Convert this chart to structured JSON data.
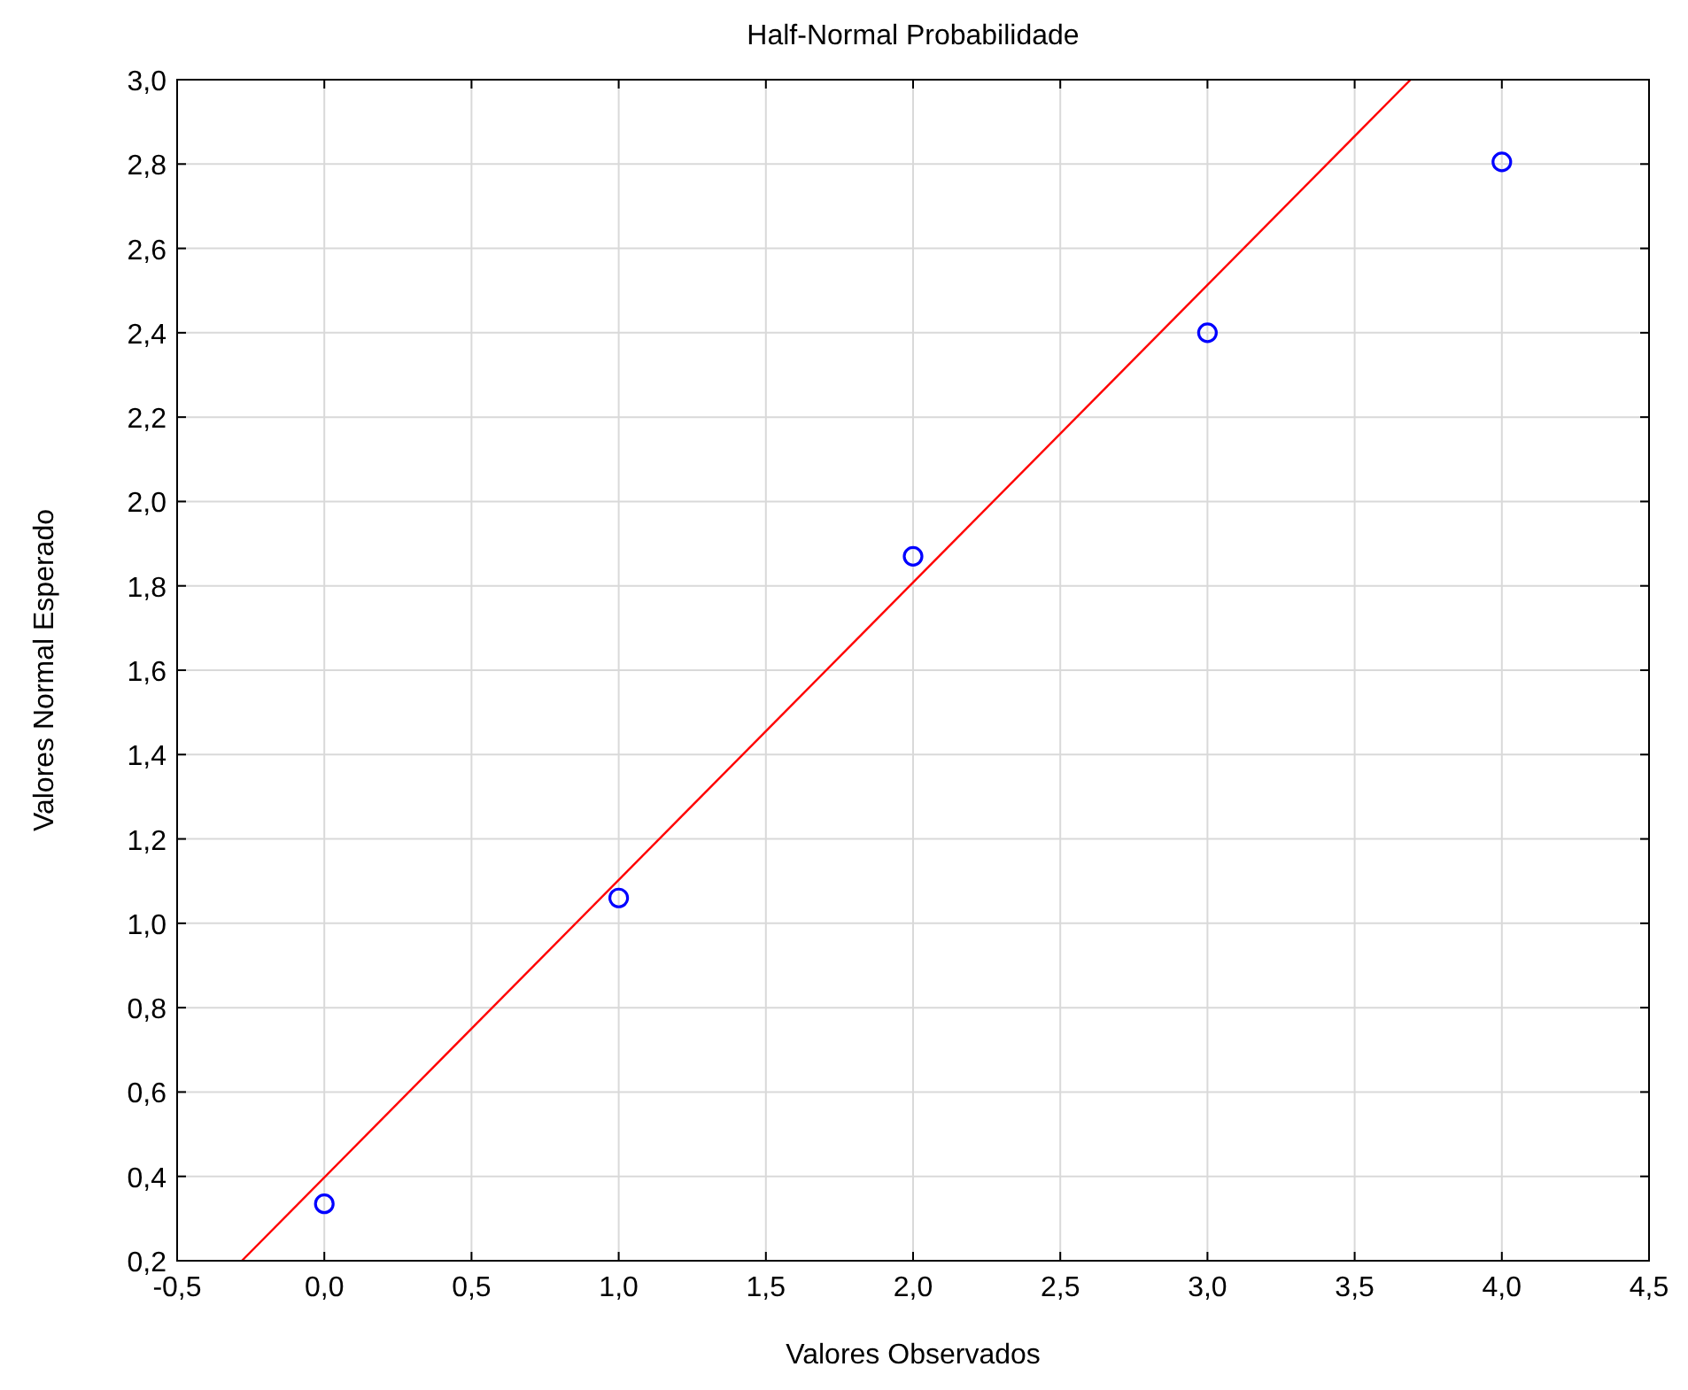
{
  "chart_data": {
    "type": "scatter",
    "title": "Half-Normal Probabilidade",
    "xlabel": "Valores Observados",
    "ylabel": "Valores Normal Esperado",
    "xlim": [
      -0.5,
      4.5
    ],
    "ylim": [
      0.2,
      3.0
    ],
    "xticks": [
      {
        "value": -0.5,
        "label": "-0,5"
      },
      {
        "value": 0,
        "label": "0,0"
      },
      {
        "value": 0.5,
        "label": "0,5"
      },
      {
        "value": 1,
        "label": "1,0"
      },
      {
        "value": 1.5,
        "label": "1,5"
      },
      {
        "value": 2,
        "label": "2,0"
      },
      {
        "value": 2.5,
        "label": "2,5"
      },
      {
        "value": 3,
        "label": "3,0"
      },
      {
        "value": 3.5,
        "label": "3,5"
      },
      {
        "value": 4,
        "label": "4,0"
      },
      {
        "value": 4.5,
        "label": "4,5"
      }
    ],
    "yticks": [
      {
        "value": 0.2,
        "label": "0,2"
      },
      {
        "value": 0.4,
        "label": "0,4"
      },
      {
        "value": 0.6,
        "label": "0,6"
      },
      {
        "value": 0.8,
        "label": "0,8"
      },
      {
        "value": 1.0,
        "label": "1,0"
      },
      {
        "value": 1.2,
        "label": "1,2"
      },
      {
        "value": 1.4,
        "label": "1,4"
      },
      {
        "value": 1.6,
        "label": "1,6"
      },
      {
        "value": 1.8,
        "label": "1,8"
      },
      {
        "value": 2.0,
        "label": "2,0"
      },
      {
        "value": 2.2,
        "label": "2,2"
      },
      {
        "value": 2.4,
        "label": "2,4"
      },
      {
        "value": 2.6,
        "label": "2,6"
      },
      {
        "value": 2.8,
        "label": "2,8"
      },
      {
        "value": 3.0,
        "label": "3,0"
      }
    ],
    "grid": true,
    "series": [
      {
        "marker": "circle",
        "color": "#0000ff",
        "x": [
          0,
          1,
          2,
          3,
          4
        ],
        "values": [
          0.335,
          1.06,
          1.87,
          2.4,
          2.805
        ]
      },
      {
        "type": "line",
        "marker": "none",
        "color": "#ff0000",
        "x": [
          -0.28,
          3.69
        ],
        "values": [
          0.2,
          3.0
        ]
      }
    ]
  }
}
